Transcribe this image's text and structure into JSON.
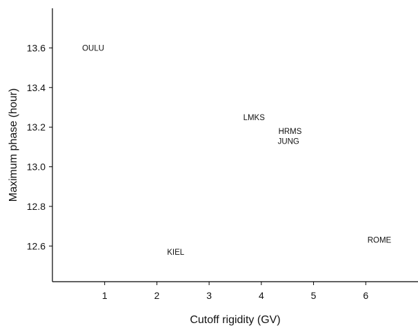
{
  "chart_data": {
    "type": "scatter",
    "title": "",
    "xlabel": "Cutoff rigidity (GV)",
    "ylabel": "Maximum phase (hour)",
    "xlim": [
      0,
      7
    ],
    "ylim": [
      12.42,
      13.8
    ],
    "xticks": [
      "1",
      "2",
      "3",
      "4",
      "5",
      "6"
    ],
    "yticks": [
      "12.6",
      "12.8",
      "13.0",
      "13.2",
      "13.4",
      "13.6"
    ],
    "grid": false,
    "legend": "none",
    "points": [
      {
        "label": "OULU",
        "x": 0.78,
        "y": 13.6
      },
      {
        "label": "KIEL",
        "x": 2.36,
        "y": 12.57
      },
      {
        "label": "LMKS",
        "x": 3.86,
        "y": 13.25
      },
      {
        "label": "HRMS",
        "x": 4.55,
        "y": 13.18
      },
      {
        "label": "JUNG",
        "x": 4.52,
        "y": 13.13
      },
      {
        "label": "ROME",
        "x": 6.26,
        "y": 12.63
      }
    ]
  }
}
